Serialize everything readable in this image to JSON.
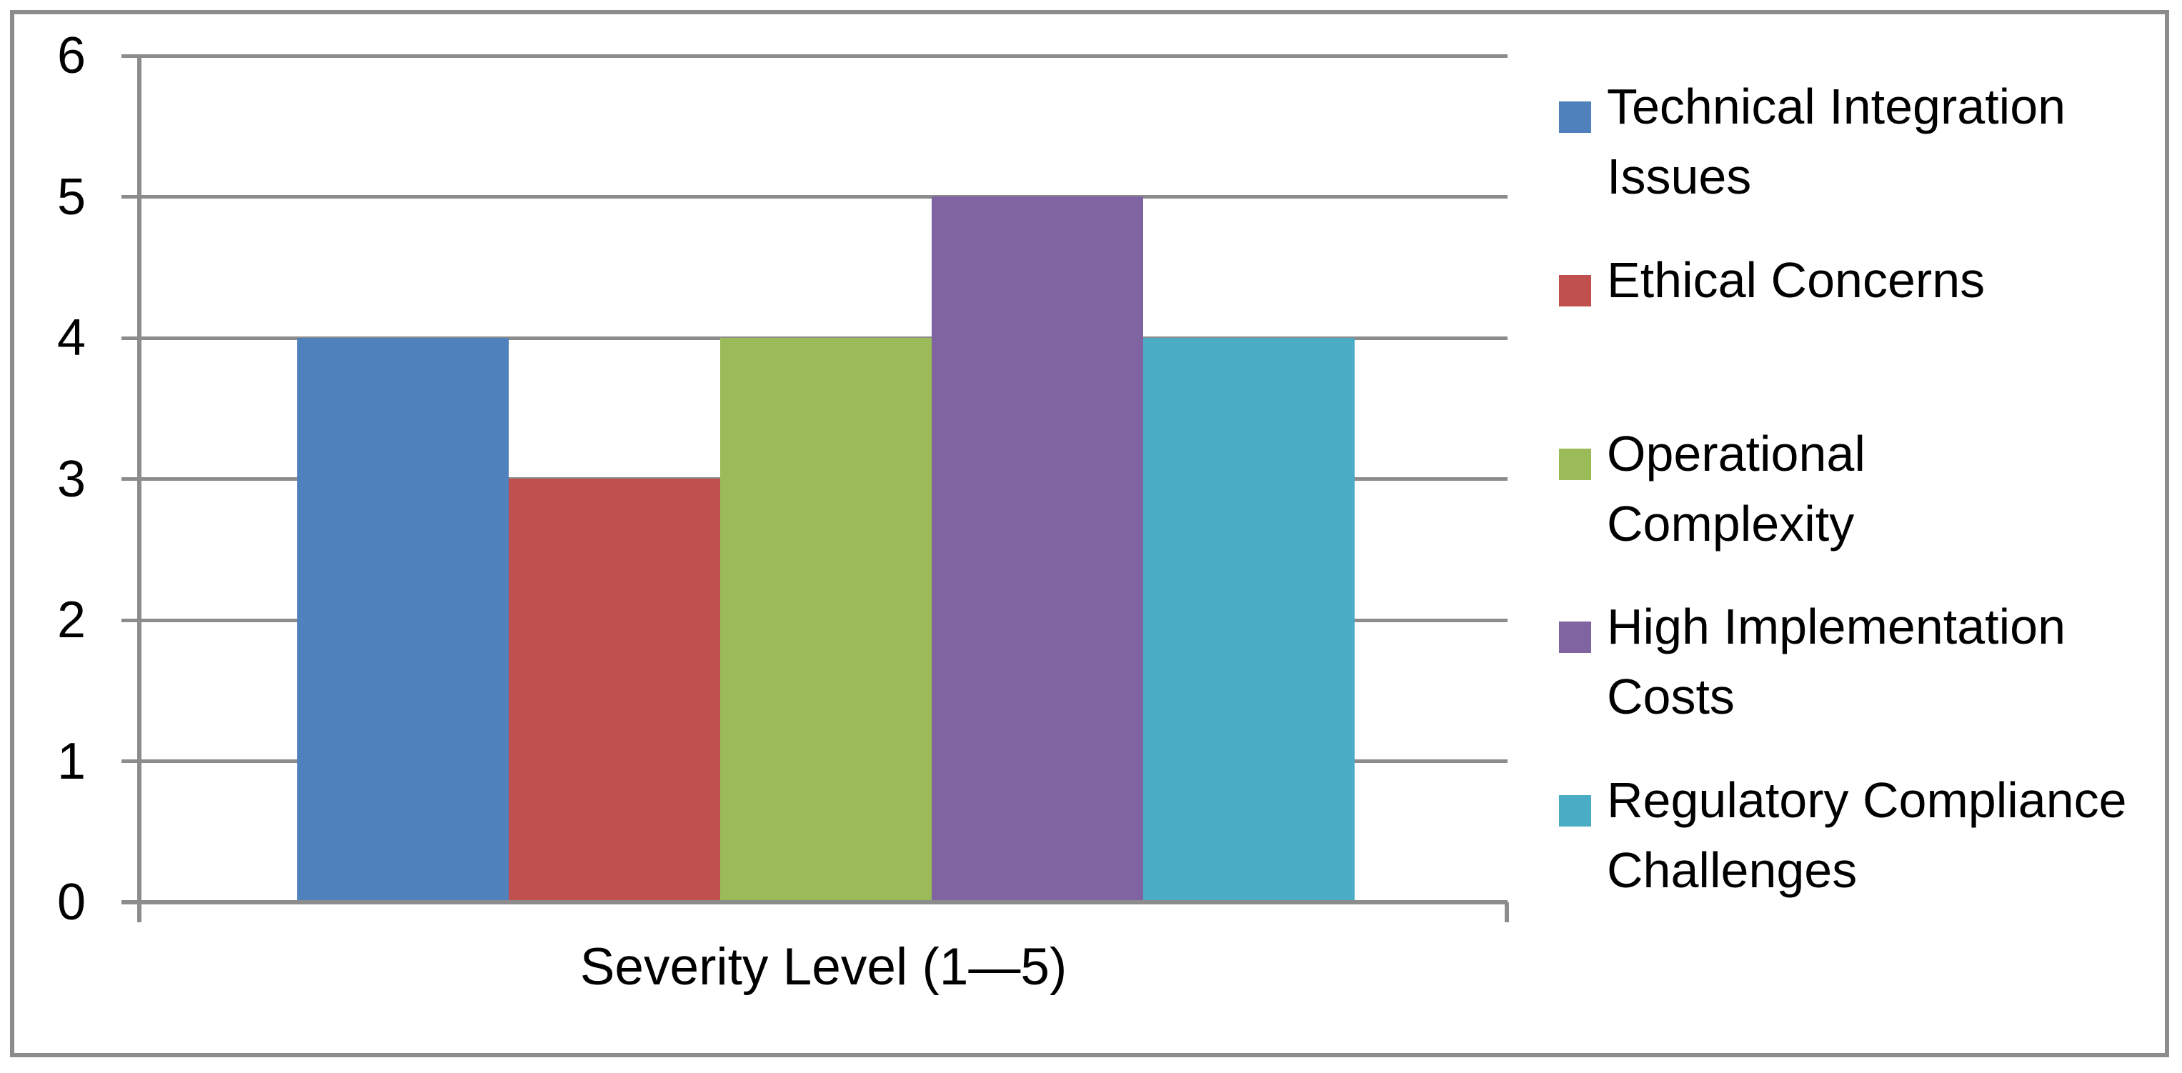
{
  "chart_data": {
    "type": "bar",
    "title": "",
    "xlabel": "Severity Level (1—5)",
    "ylabel": "",
    "ylim": [
      0,
      6
    ],
    "yticks": [
      0,
      1,
      2,
      3,
      4,
      5,
      6
    ],
    "grid": true,
    "legend_position": "right",
    "categories": [
      "Severity Level (1—5)"
    ],
    "series": [
      {
        "name": "Technical Integration Issues",
        "label_lines": [
          "Technical Integration",
          "Issues"
        ],
        "values": [
          4
        ],
        "color": "#4F81BD"
      },
      {
        "name": "Ethical Concerns",
        "label_lines": [
          "Ethical Concerns"
        ],
        "values": [
          3
        ],
        "color": "#C0504D"
      },
      {
        "name": "Operational Complexity",
        "label_lines": [
          "Operational",
          "Complexity"
        ],
        "values": [
          4
        ],
        "color": "#9BBB59"
      },
      {
        "name": "High Implementation Costs",
        "label_lines": [
          "High Implementation",
          "Costs"
        ],
        "values": [
          5
        ],
        "color": "#8064A2"
      },
      {
        "name": "Regulatory Compliance Challenges",
        "label_lines": [
          "Regulatory Compliance",
          "Challenges"
        ],
        "values": [
          4
        ],
        "color": "#4BACC6"
      }
    ]
  },
  "colors": {
    "gridline": "#8C8C8C",
    "axis": "#8C8C8C",
    "frame": "#8C8C8C",
    "background": "#FFFFFF",
    "text": "#000000"
  }
}
